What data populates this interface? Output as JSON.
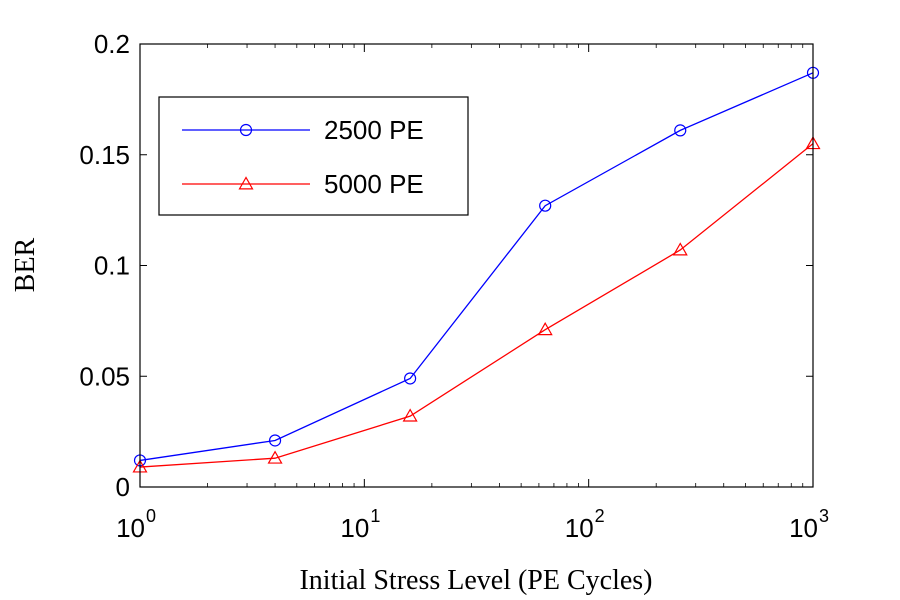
{
  "chart_data": {
    "type": "line",
    "xlabel": "Initial Stress Level (PE Cycles)",
    "ylabel": "BER",
    "xscale": "log",
    "xlim": [
      1,
      1000
    ],
    "ylim": [
      0,
      0.2
    ],
    "x_ticks": [
      {
        "value": 1,
        "base": "10",
        "exp": "0"
      },
      {
        "value": 10,
        "base": "10",
        "exp": "1"
      },
      {
        "value": 100,
        "base": "10",
        "exp": "2"
      },
      {
        "value": 1000,
        "base": "10",
        "exp": "3"
      }
    ],
    "y_ticks": [
      {
        "value": 0,
        "label": "0"
      },
      {
        "value": 0.05,
        "label": "0.05"
      },
      {
        "value": 0.1,
        "label": "0.1"
      },
      {
        "value": 0.15,
        "label": "0.15"
      },
      {
        "value": 0.2,
        "label": "0.2"
      }
    ],
    "grid": false,
    "legend_position": "top-left",
    "x": [
      1,
      4,
      16,
      64,
      256,
      1000
    ],
    "series": [
      {
        "name": "2500 PE",
        "color": "#0000ff",
        "marker": "circle",
        "values": [
          0.012,
          0.021,
          0.049,
          0.127,
          0.161,
          0.187
        ]
      },
      {
        "name": "5000 PE",
        "color": "#ff0000",
        "marker": "triangle",
        "values": [
          0.009,
          0.013,
          0.032,
          0.071,
          0.107,
          0.155
        ]
      }
    ]
  }
}
